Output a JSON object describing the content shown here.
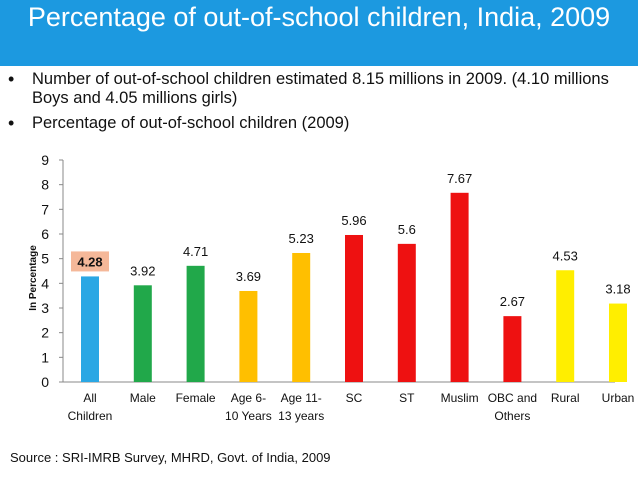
{
  "slide": {
    "title": "Percentage of out-of-school children, India, 2009",
    "bullets": [
      "Number of out-of-school children estimated 8.15 millions in 2009. (4.10 millions Boys and 4.05 millions girls)",
      "Percentage of out-of-school children (2009)"
    ],
    "source": "Source : SRI-IMRB Survey, MHRD, Govt. of India, 2009"
  },
  "colors": {
    "title_bar": "#1c99e0",
    "blue": "#2aa7e4",
    "green": "#21a84a",
    "orange": "#ffbf00",
    "red": "#ee1111",
    "yellow": "#ffee00",
    "highlight_label_bg": "#f5b899"
  },
  "chart_data": {
    "type": "bar",
    "title": "",
    "xlabel": "",
    "ylabel": "In Percentage",
    "ylim": [
      0,
      9
    ],
    "yticks": [
      0,
      1,
      2,
      3,
      4,
      5,
      6,
      7,
      8,
      9
    ],
    "grid": false,
    "categories": [
      [
        "All",
        "Children"
      ],
      [
        "Male"
      ],
      [
        "Female"
      ],
      [
        "Age 6-",
        "10 Years"
      ],
      [
        "Age 11-",
        "13 years"
      ],
      [
        "SC"
      ],
      [
        "ST"
      ],
      [
        "Muslim"
      ],
      [
        "OBC and",
        "Others"
      ],
      [
        "Rural"
      ],
      [
        "Urban"
      ]
    ],
    "values": [
      4.28,
      3.92,
      4.71,
      3.69,
      5.23,
      5.96,
      5.6,
      7.67,
      2.67,
      4.53,
      3.18
    ],
    "data_labels": [
      "4.28",
      "3.92",
      "4.71",
      "3.69",
      "5.23",
      "5.96",
      "5.6",
      "7.67",
      "2.67",
      "4.53",
      "3.18"
    ],
    "bar_colors": [
      "blue",
      "green",
      "green",
      "orange",
      "orange",
      "red",
      "red",
      "red",
      "red",
      "yellow",
      "yellow"
    ],
    "highlighted_label_index": 0
  }
}
